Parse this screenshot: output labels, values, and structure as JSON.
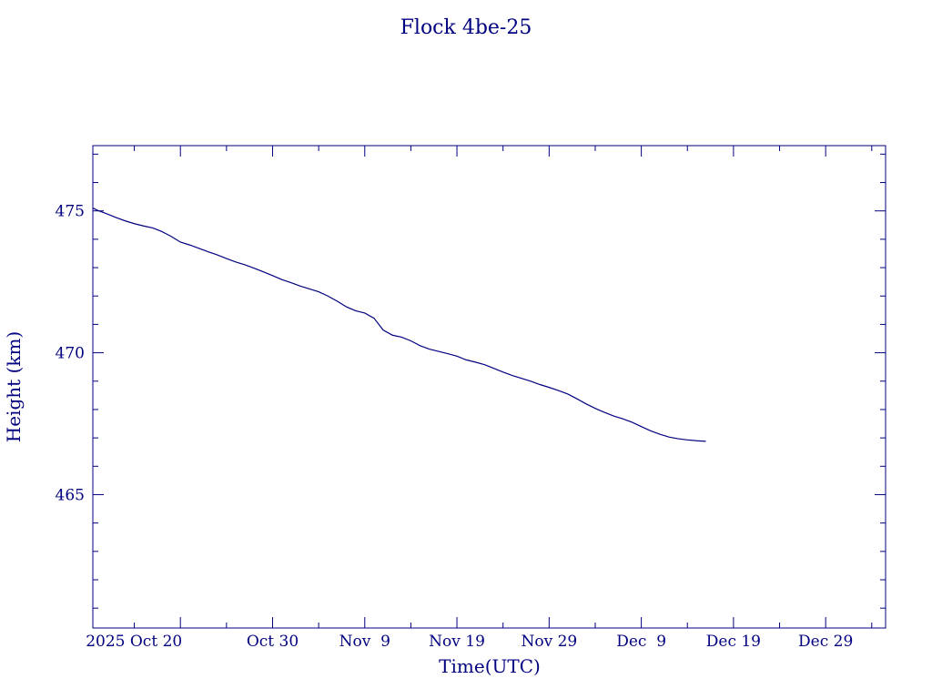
{
  "chart_data": {
    "type": "line",
    "title": "Flock 4be-25",
    "xlabel": "Time(UTC)",
    "ylabel": "Height (km)",
    "x_axis": "date",
    "xlim": [
      "2025-10-10T12:00",
      "2026-01-04T12:00"
    ],
    "ylim": [
      460.3,
      477.3
    ],
    "y_major_ticks": [
      465,
      470,
      475
    ],
    "y_minor_step": 1,
    "x_major_ticks": [
      {
        "date": "2025-10-20",
        "label": "2025 Oct 20"
      },
      {
        "date": "2025-10-30",
        "label": "Oct 30"
      },
      {
        "date": "2025-11-09",
        "label": "Nov  9"
      },
      {
        "date": "2025-11-19",
        "label": "Nov 19"
      },
      {
        "date": "2025-11-29",
        "label": "Nov 29"
      },
      {
        "date": "2025-12-09",
        "label": "Dec  9"
      },
      {
        "date": "2025-12-19",
        "label": "Dec 19"
      },
      {
        "date": "2025-12-29",
        "label": "Dec 29"
      }
    ],
    "x_minor_step_days": 5,
    "grid": false,
    "color": "#000080",
    "series": [
      {
        "x": [
          "2025-10-10T12:00",
          "2025-10-11",
          "2025-10-12",
          "2025-10-13",
          "2025-10-14",
          "2025-10-15",
          "2025-10-16",
          "2025-10-17",
          "2025-10-18",
          "2025-10-19",
          "2025-10-20",
          "2025-10-21",
          "2025-10-22",
          "2025-10-23",
          "2025-10-24",
          "2025-10-25",
          "2025-10-26",
          "2025-10-27",
          "2025-10-28",
          "2025-10-29",
          "2025-10-30",
          "2025-10-31",
          "2025-11-01",
          "2025-11-02",
          "2025-11-03",
          "2025-11-04",
          "2025-11-05",
          "2025-11-06",
          "2025-11-07",
          "2025-11-08",
          "2025-11-09",
          "2025-11-10",
          "2025-11-11",
          "2025-11-12",
          "2025-11-13",
          "2025-11-14",
          "2025-11-15",
          "2025-11-16",
          "2025-11-17",
          "2025-11-18",
          "2025-11-19",
          "2025-11-20",
          "2025-11-21",
          "2025-11-22",
          "2025-11-23",
          "2025-11-24",
          "2025-11-25",
          "2025-11-26",
          "2025-11-27",
          "2025-11-28",
          "2025-11-29",
          "2025-11-30",
          "2025-12-01",
          "2025-12-02",
          "2025-12-03",
          "2025-12-04",
          "2025-12-05",
          "2025-12-06",
          "2025-12-07",
          "2025-12-08",
          "2025-12-09",
          "2025-12-10",
          "2025-12-11",
          "2025-12-12",
          "2025-12-13",
          "2025-12-14",
          "2025-12-15",
          "2025-12-16"
        ],
        "y": [
          475.1,
          475.02,
          474.9,
          474.77,
          474.65,
          474.55,
          474.47,
          474.4,
          474.27,
          474.1,
          473.9,
          473.8,
          473.68,
          473.56,
          473.45,
          473.32,
          473.2,
          473.1,
          472.98,
          472.85,
          472.72,
          472.58,
          472.47,
          472.35,
          472.25,
          472.15,
          472.0,
          471.82,
          471.62,
          471.48,
          471.4,
          471.22,
          470.8,
          470.62,
          470.55,
          470.42,
          470.25,
          470.13,
          470.05,
          469.97,
          469.88,
          469.75,
          469.67,
          469.58,
          469.45,
          469.32,
          469.2,
          469.1,
          469.0,
          468.88,
          468.78,
          468.67,
          468.55,
          468.38,
          468.2,
          468.04,
          467.9,
          467.77,
          467.67,
          467.55,
          467.4,
          467.25,
          467.13,
          467.03,
          466.97,
          466.93,
          466.9,
          466.88
        ]
      }
    ]
  }
}
